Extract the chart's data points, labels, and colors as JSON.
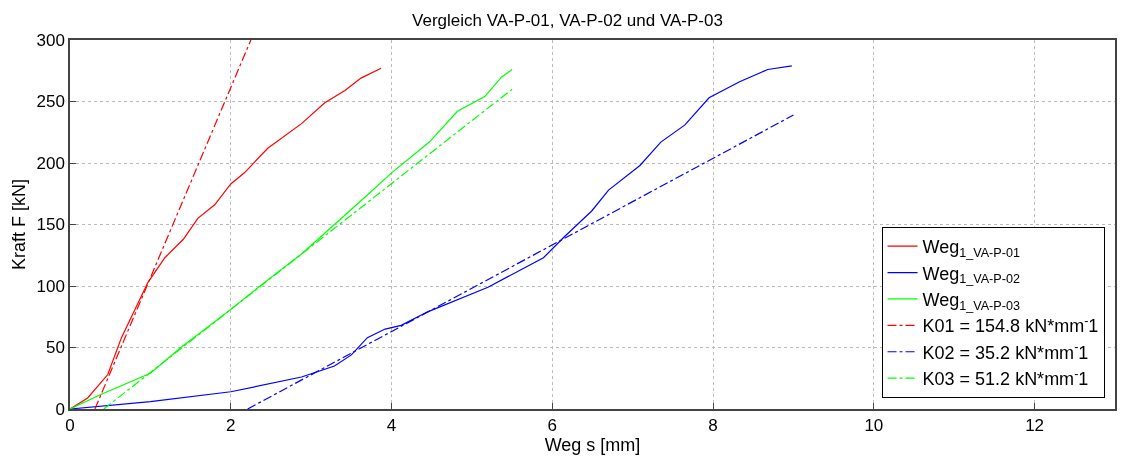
{
  "chart_data": {
    "type": "line",
    "title": "Vergleich VA-P-01, VA-P-02 und VA-P-03",
    "xlabel": "Weg s [mm]",
    "ylabel": "Kraft F [kN]",
    "xlim": [
      0,
      13
    ],
    "xticks": [
      0,
      2,
      4,
      6,
      8,
      10,
      12
    ],
    "ylim": [
      0,
      300
    ],
    "yticks": [
      0,
      50,
      100,
      150,
      200,
      250,
      300
    ],
    "grid": true,
    "legend": "right",
    "line_style": "solid",
    "series": [
      {
        "name": "Weg$_{1_VA-P-01}$",
        "color": "#ff0000",
        "x": [
          0,
          0.22,
          0.47,
          0.64,
          0.97,
          1.18,
          1.41,
          1.59,
          1.8,
          2.0,
          2.17,
          2.46,
          2.88,
          3.17,
          3.42,
          3.62,
          3.87
        ],
        "values": [
          0,
          9,
          28,
          58,
          103,
          123,
          138,
          155,
          166,
          183,
          192,
          212,
          232,
          249,
          259,
          269,
          277
        ]
      },
      {
        "name": "Weg$_{1_VA-P-02}$",
        "color": "#0000ff",
        "x": [
          0,
          1.0,
          2.0,
          2.88,
          3.29,
          3.5,
          3.7,
          3.92,
          4.12,
          4.45,
          5.2,
          5.89,
          6.15,
          6.49,
          6.7,
          7.09,
          7.35,
          7.65,
          7.95,
          8.33,
          8.68,
          8.98
        ],
        "values": [
          0,
          6,
          14,
          26,
          35,
          44,
          58,
          65,
          68,
          79,
          99,
          123,
          140,
          161,
          178,
          198,
          217,
          231,
          253,
          266,
          276,
          279
        ]
      },
      {
        "name": "Weg$_{1_VA-P-03}$",
        "color": "#00ff00",
        "x": [
          0,
          0.39,
          1.0,
          1.38,
          2.0,
          2.46,
          2.88,
          3.29,
          3.7,
          4.0,
          4.47,
          4.82,
          5.16,
          5.37,
          5.5
        ],
        "values": [
          0,
          12,
          29,
          50,
          81,
          105,
          126,
          150,
          174,
          192,
          217,
          242,
          254,
          270,
          276
        ]
      },
      {
        "name": "K01 = 154.8 kN*mm$^{-}$1",
        "color": "#ff0000",
        "line_style": "dashdot",
        "x": [
          0.31,
          2.25
        ],
        "values": [
          0,
          300
        ]
      },
      {
        "name": "K02 = 35.2 kN*mm$^{-}$1",
        "color": "#0000ff",
        "line_style": "dashdot",
        "x": [
          2.21,
          9.0
        ],
        "values": [
          0,
          239
        ]
      },
      {
        "name": "K03 = 51.2 kN*mm$^{-}$1",
        "color": "#00ff00",
        "line_style": "dashdot",
        "x": [
          0.42,
          5.5
        ],
        "values": [
          0,
          260
        ]
      }
    ]
  }
}
